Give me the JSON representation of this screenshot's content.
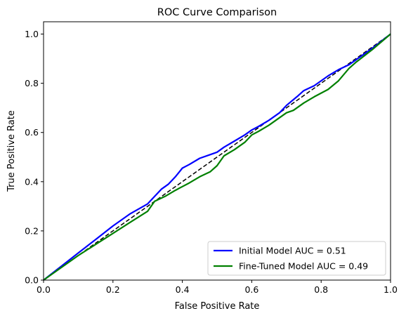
{
  "chart_data": {
    "type": "line",
    "title": "ROC Curve Comparison",
    "xlabel": "False Positive Rate",
    "ylabel": "True Positive Rate",
    "xlim": [
      0.0,
      1.0
    ],
    "ylim": [
      0.0,
      1.05
    ],
    "xticks": [
      "0.0",
      "0.2",
      "0.4",
      "0.6",
      "0.8",
      "1.0"
    ],
    "yticks": [
      "0.0",
      "0.2",
      "0.4",
      "0.6",
      "0.8",
      "1.0"
    ],
    "xtick_values": [
      0.0,
      0.2,
      0.4,
      0.6,
      0.8,
      1.0
    ],
    "ytick_values": [
      0.0,
      0.2,
      0.4,
      0.6,
      0.8,
      1.0
    ],
    "grid": false,
    "legend_position": "lower-right",
    "series": [
      {
        "name": "Initial Model AUC = 0.51",
        "color": "#0000ff",
        "x": [
          0.0,
          0.05,
          0.1,
          0.15,
          0.2,
          0.25,
          0.3,
          0.32,
          0.34,
          0.36,
          0.38,
          0.4,
          0.42,
          0.45,
          0.48,
          0.5,
          0.52,
          0.55,
          0.58,
          0.6,
          0.62,
          0.65,
          0.68,
          0.7,
          0.73,
          0.75,
          0.78,
          0.8,
          0.82,
          0.85,
          0.88,
          0.9,
          0.95,
          1.0
        ],
        "y": [
          0.0,
          0.055,
          0.11,
          0.165,
          0.22,
          0.27,
          0.31,
          0.34,
          0.37,
          0.39,
          0.42,
          0.455,
          0.47,
          0.495,
          0.51,
          0.52,
          0.54,
          0.565,
          0.59,
          0.61,
          0.625,
          0.65,
          0.68,
          0.71,
          0.745,
          0.77,
          0.79,
          0.81,
          0.83,
          0.855,
          0.875,
          0.895,
          0.945,
          1.0
        ]
      },
      {
        "name": "Fine-Tuned Model AUC = 0.49",
        "color": "#008000",
        "x": [
          0.0,
          0.05,
          0.1,
          0.15,
          0.2,
          0.25,
          0.3,
          0.32,
          0.35,
          0.38,
          0.4,
          0.42,
          0.45,
          0.48,
          0.5,
          0.52,
          0.55,
          0.58,
          0.6,
          0.62,
          0.65,
          0.68,
          0.7,
          0.72,
          0.75,
          0.78,
          0.8,
          0.82,
          0.85,
          0.88,
          0.9,
          0.95,
          1.0
        ],
        "y": [
          0.0,
          0.05,
          0.1,
          0.145,
          0.19,
          0.235,
          0.28,
          0.32,
          0.34,
          0.365,
          0.38,
          0.395,
          0.42,
          0.44,
          0.465,
          0.505,
          0.53,
          0.56,
          0.59,
          0.605,
          0.63,
          0.66,
          0.68,
          0.69,
          0.72,
          0.745,
          0.76,
          0.775,
          0.81,
          0.86,
          0.885,
          0.94,
          1.0
        ]
      },
      {
        "name": "",
        "color": "#000000",
        "dashed": true,
        "x": [
          0.0,
          1.0
        ],
        "y": [
          0.0,
          1.0
        ]
      }
    ]
  }
}
